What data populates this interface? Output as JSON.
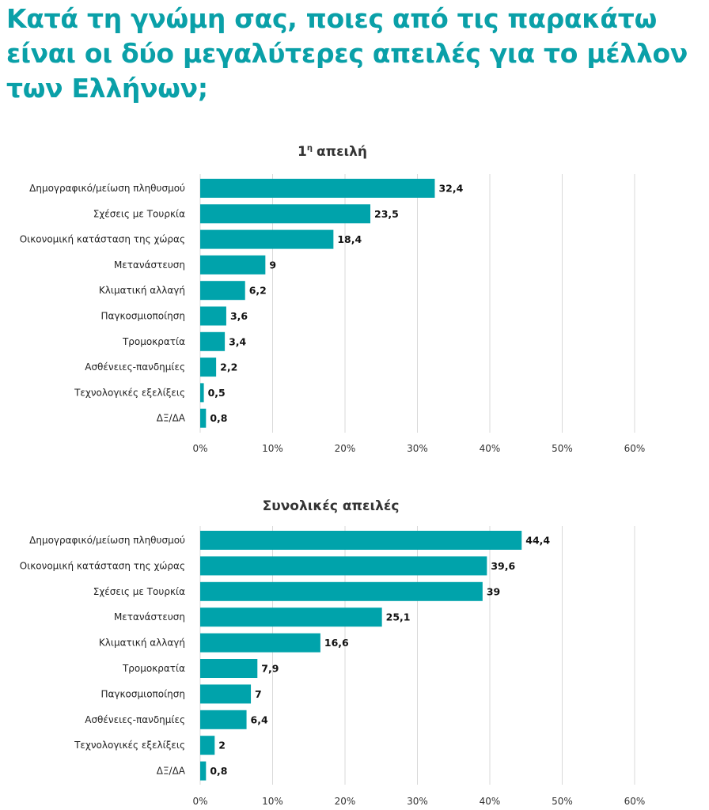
{
  "page": {
    "title": "Κατά τη γνώμη σας, ποιες από τις παρακάτω είναι οι δύο μεγαλύτερες απειλές για το μέλλον των Ελλήνων;"
  },
  "colors": {
    "bar": "#00a3ab",
    "title": "#0aa0a8"
  },
  "chart_data": [
    {
      "type": "bar",
      "orientation": "horizontal",
      "title": "1",
      "title_superscript": "η",
      "title_suffix": "απειλή",
      "categories": [
        "Δημογραφικό/μείωση πληθυσμού",
        "Σχέσεις με Τουρκία",
        "Οικονομική κατάσταση της χώρας",
        "Μετανάστευση",
        "Κλιματική αλλαγή",
        "Παγκοσμιοποίηση",
        "Τρομοκρατία",
        "Ασθένειες-πανδημίες",
        "Τεχνολογικές εξελίξεις",
        "ΔΞ/ΔΑ"
      ],
      "values": [
        32.4,
        23.5,
        18.4,
        9,
        6.2,
        3.6,
        3.4,
        2.2,
        0.5,
        0.8
      ],
      "value_labels": [
        "32,4",
        "23,5",
        "18,4",
        "9",
        "6,2",
        "3,6",
        "3,4",
        "2,2",
        "0,5",
        "0,8"
      ],
      "xlim": [
        0,
        60
      ],
      "x_ticks": [
        0,
        10,
        20,
        30,
        40,
        50,
        60
      ],
      "x_tick_labels": [
        "0%",
        "10%",
        "20%",
        "30%",
        "40%",
        "50%",
        "60%"
      ],
      "grid": true,
      "legend": "none"
    },
    {
      "type": "bar",
      "orientation": "horizontal",
      "title": "Συνολικές απειλές",
      "categories": [
        "Δημογραφικό/μείωση πληθυσμού",
        "Οικονομική κατάσταση της χώρας",
        "Σχέσεις με Τουρκία",
        "Μετανάστευση",
        "Κλιματική αλλαγή",
        "Τρομοκρατία",
        "Παγκοσμιοποίηση",
        "Ασθένειες-πανδημίες",
        "Τεχνολογικές εξελίξεις",
        "ΔΞ/ΔΑ"
      ],
      "values": [
        44.4,
        39.6,
        39,
        25.1,
        16.6,
        7.9,
        7,
        6.4,
        2,
        0.8
      ],
      "value_labels": [
        "44,4",
        "39,6",
        "39",
        "25,1",
        "16,6",
        "7,9",
        "7",
        "6,4",
        "2",
        "0,8"
      ],
      "xlim": [
        0,
        60
      ],
      "x_ticks": [
        0,
        10,
        20,
        30,
        40,
        50,
        60
      ],
      "x_tick_labels": [
        "0%",
        "10%",
        "20%",
        "30%",
        "40%",
        "50%",
        "60%"
      ],
      "grid": true,
      "legend": "none"
    }
  ]
}
